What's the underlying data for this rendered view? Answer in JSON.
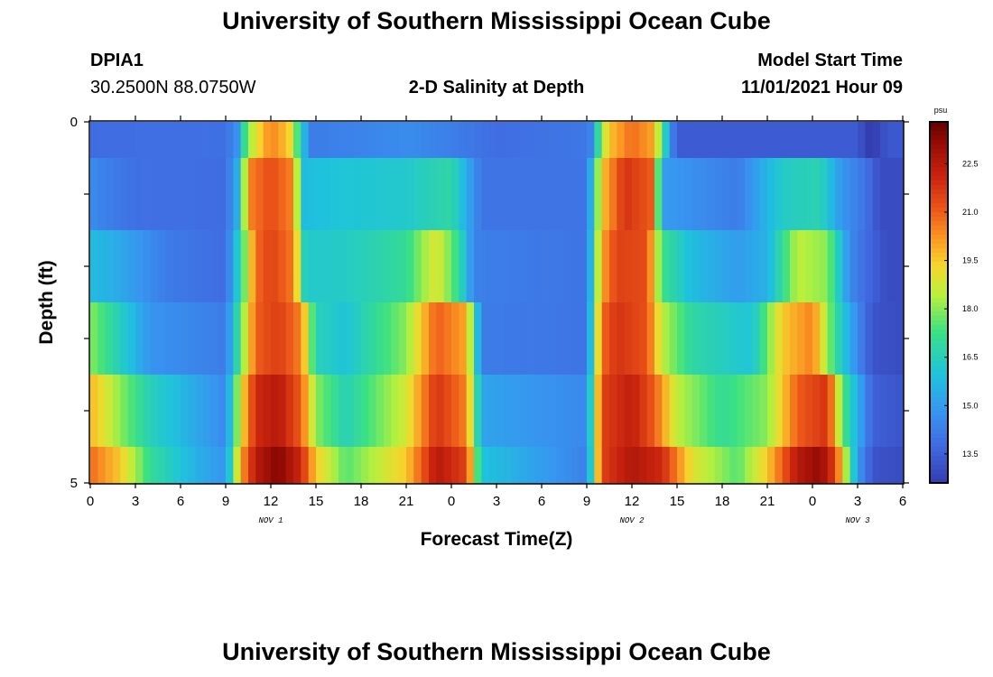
{
  "header": {
    "title": "University of Southern Mississippi Ocean Cube",
    "station_id": "DPIA1",
    "station_coords": "30.2500N  88.0750W",
    "chart_title": "2-D Salinity at Depth",
    "model_start_label": "Model Start Time",
    "model_start_value": "11/01/2021 Hour 09"
  },
  "footer": {
    "title": "University of Southern Mississippi Ocean Cube"
  },
  "chart_data": {
    "type": "heatmap",
    "title": "2-D Salinity at Depth",
    "xlabel": "Forecast Time(Z)",
    "ylabel": "Depth (ft)",
    "x_tick_labels": [
      "0",
      "3",
      "6",
      "9",
      "12",
      "15",
      "18",
      "21",
      "0",
      "3",
      "6",
      "9",
      "12",
      "15",
      "18",
      "21",
      "0",
      "3",
      "6"
    ],
    "y_tick_labels": [
      "0",
      "5"
    ],
    "y_range": [
      0,
      5
    ],
    "day_labels": [
      "NOV 1",
      "NOV 2",
      "NOV 3"
    ],
    "colorbar_unit": "psu",
    "colorbar_ticks": [
      "22.5",
      "21.0",
      "19.5",
      "18.0",
      "16.5",
      "15.0",
      "13.5"
    ],
    "colorbar_range": [
      12.6,
      23.8
    ],
    "x_hours_start": 0,
    "x_hours_step": 0.5,
    "columns": 108,
    "depth_layers": [
      {
        "depth": "0.0-0.5",
        "points": [
          [
            0,
            13.8
          ],
          [
            9,
            13.9
          ],
          [
            9.8,
            14.8
          ],
          [
            10.4,
            17.8
          ],
          [
            11.2,
            19.3
          ],
          [
            12,
            20.5
          ],
          [
            13.2,
            19.5
          ],
          [
            14,
            16.5
          ],
          [
            14.6,
            14.2
          ],
          [
            21,
            14.6
          ],
          [
            23,
            14.4
          ],
          [
            27,
            13.8
          ],
          [
            33.2,
            14.1
          ],
          [
            33.6,
            16.2
          ],
          [
            34.4,
            19.5
          ],
          [
            36,
            20.8
          ],
          [
            37.4,
            20.0
          ],
          [
            38,
            17.5
          ],
          [
            38.6,
            14.5
          ],
          [
            39,
            13.4
          ],
          [
            51,
            13.4
          ],
          [
            51.6,
            12.6
          ],
          [
            52.4,
            12.8
          ],
          [
            53,
            13.3
          ],
          [
            54,
            13.3
          ]
        ]
      },
      {
        "depth": "0.5-1.5",
        "points": [
          [
            0,
            14.6
          ],
          [
            1,
            14.3
          ],
          [
            3,
            13.9
          ],
          [
            9,
            13.8
          ],
          [
            9.8,
            15.5
          ],
          [
            10.6,
            20.5
          ],
          [
            12,
            21.3
          ],
          [
            13.4,
            20.5
          ],
          [
            14.2,
            15.8
          ],
          [
            16,
            16.0
          ],
          [
            21,
            16.2
          ],
          [
            24,
            16.8
          ],
          [
            26,
            14.0
          ],
          [
            33,
            14.0
          ],
          [
            34,
            19.5
          ],
          [
            35.5,
            21.8
          ],
          [
            37.4,
            21.0
          ],
          [
            38,
            15.0
          ],
          [
            43,
            14.2
          ],
          [
            46,
            16.3
          ],
          [
            48.5,
            16.6
          ],
          [
            50,
            14.8
          ],
          [
            51.5,
            14.0
          ],
          [
            52.5,
            13.0
          ],
          [
            54,
            13.0
          ]
        ]
      },
      {
        "depth": "1.5-2.5",
        "points": [
          [
            0,
            15.8
          ],
          [
            2,
            15.3
          ],
          [
            5,
            14.2
          ],
          [
            9,
            13.8
          ],
          [
            10,
            16.8
          ],
          [
            11,
            20.8
          ],
          [
            12,
            21.5
          ],
          [
            13.5,
            20.6
          ],
          [
            14.3,
            16.2
          ],
          [
            17,
            16.3
          ],
          [
            21,
            17.0
          ],
          [
            23,
            19.0
          ],
          [
            24.5,
            17.0
          ],
          [
            25.5,
            14.3
          ],
          [
            33,
            14.0
          ],
          [
            34,
            20.0
          ],
          [
            35,
            21.5
          ],
          [
            37,
            21.3
          ],
          [
            38,
            17.2
          ],
          [
            40,
            15.8
          ],
          [
            43,
            15.0
          ],
          [
            45,
            15.5
          ],
          [
            47,
            18.5
          ],
          [
            49,
            18.0
          ],
          [
            50.5,
            14.5
          ],
          [
            52,
            13.5
          ],
          [
            53,
            13.0
          ],
          [
            54,
            13.0
          ]
        ]
      },
      {
        "depth": "2.5-3.5",
        "points": [
          [
            0,
            18.0
          ],
          [
            1.5,
            16.8
          ],
          [
            4,
            14.8
          ],
          [
            9,
            14.2
          ],
          [
            10,
            17.5
          ],
          [
            11,
            21.0
          ],
          [
            12.5,
            21.6
          ],
          [
            14,
            20.5
          ],
          [
            15,
            16.5
          ],
          [
            17,
            16.0
          ],
          [
            21,
            18.0
          ],
          [
            23,
            21.0
          ],
          [
            25,
            20.0
          ],
          [
            26,
            14.2
          ],
          [
            33,
            14.0
          ],
          [
            34,
            20.8
          ],
          [
            35,
            21.8
          ],
          [
            37,
            21.2
          ],
          [
            38,
            18.5
          ],
          [
            40,
            16.8
          ],
          [
            44,
            16.0
          ],
          [
            46,
            19.5
          ],
          [
            48,
            20.5
          ],
          [
            49.5,
            17.0
          ],
          [
            51,
            14.5
          ],
          [
            52,
            13.2
          ],
          [
            54,
            13.0
          ]
        ]
      },
      {
        "depth": "3.5-4.5",
        "points": [
          [
            0,
            19.8
          ],
          [
            2,
            18.0
          ],
          [
            4,
            16.5
          ],
          [
            9,
            14.5
          ],
          [
            10,
            19.0
          ],
          [
            11,
            22.0
          ],
          [
            12.5,
            22.5
          ],
          [
            14,
            21.0
          ],
          [
            15,
            18.0
          ],
          [
            17,
            16.5
          ],
          [
            21,
            18.8
          ],
          [
            23,
            21.8
          ],
          [
            25,
            20.5
          ],
          [
            26,
            15.2
          ],
          [
            33,
            14.5
          ],
          [
            34,
            21.5
          ],
          [
            36,
            22.3
          ],
          [
            37.5,
            21.0
          ],
          [
            39,
            18.5
          ],
          [
            42,
            17.0
          ],
          [
            45,
            18.0
          ],
          [
            47,
            21.0
          ],
          [
            49,
            21.8
          ],
          [
            50,
            17.5
          ],
          [
            52,
            13.5
          ],
          [
            54,
            13.2
          ]
        ]
      },
      {
        "depth": "4.5-5.0",
        "points": [
          [
            0,
            20.8
          ],
          [
            2,
            19.5
          ],
          [
            4,
            17.0
          ],
          [
            7,
            15.5
          ],
          [
            9,
            14.8
          ],
          [
            10,
            20.0
          ],
          [
            11,
            22.5
          ],
          [
            12.5,
            23.4
          ],
          [
            14,
            22.0
          ],
          [
            15,
            19.5
          ],
          [
            17,
            17.5
          ],
          [
            21,
            19.5
          ],
          [
            23,
            22.5
          ],
          [
            25,
            21.5
          ],
          [
            26,
            16.0
          ],
          [
            33,
            14.3
          ],
          [
            34,
            21.5
          ],
          [
            36,
            22.6
          ],
          [
            38,
            22.0
          ],
          [
            40,
            19.0
          ],
          [
            43,
            17.5
          ],
          [
            45,
            19.5
          ],
          [
            47,
            22.5
          ],
          [
            48.5,
            23.2
          ],
          [
            49.5,
            21.5
          ],
          [
            51,
            15.0
          ],
          [
            52,
            13.2
          ],
          [
            54,
            13.0
          ]
        ]
      }
    ]
  }
}
